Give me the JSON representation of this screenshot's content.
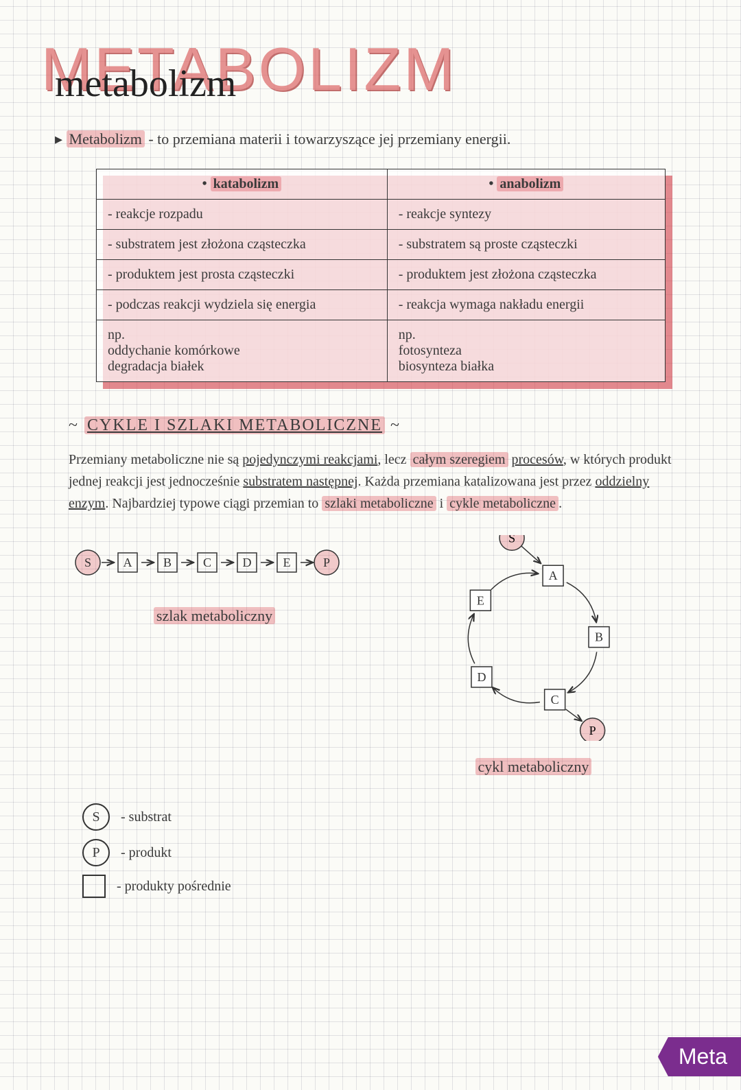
{
  "colors": {
    "highlight": "#d8555f",
    "ink": "#333333",
    "grid": "#c8c8d0",
    "tag": "#7b2d8e"
  },
  "title": {
    "block": "METABOLIZM",
    "script": "metabolizm"
  },
  "definition": {
    "term": "Metabolizm",
    "text": " - to przemiana materii i towarzyszące jej przemiany energii."
  },
  "table": {
    "headers": [
      "katabolizm",
      "anabolizm"
    ],
    "rows": [
      [
        "- reakcje rozpadu",
        "- reakcje syntezy"
      ],
      [
        "- substratem jest złożona cząsteczka",
        "- substratem są proste cząsteczki"
      ],
      [
        "- produktem jest prosta cząsteczki",
        "- produktem jest złożona cząsteczka"
      ],
      [
        "- podczas reakcji wydziela się energia",
        "- reakcja wymaga nakładu energii"
      ],
      [
        "np.\noddychanie komórkowe\ndegradacja białek",
        "np.\nfotosynteza\nbiosynteza białka"
      ]
    ]
  },
  "section": {
    "prefix": "~",
    "title": "CYKLE I SZLAKI METABOLICZNE",
    "suffix": "~"
  },
  "paragraph": {
    "p1": "Przemiany metaboliczne nie są ",
    "u1": "pojedynczymi reakcjami",
    "p2": ", lecz ",
    "h1": "całym szeregiem",
    "p3": " ",
    "u2": "procesów",
    "p4": ", w których produkt jednej reakcji jest jednocześnie ",
    "u3": "substratem następnej",
    "p5": ". Każda przemiana katalizowana jest przez ",
    "u4": "oddzielny enzym",
    "p6": ". Najbardziej typowe ciągi przemian to ",
    "h2": "szlaki metaboliczne",
    "p7": " i ",
    "h3": "cykle metaboliczne",
    "p8": "."
  },
  "pathway": {
    "type": "linear",
    "nodes": [
      "S",
      "A",
      "B",
      "C",
      "D",
      "E",
      "P"
    ],
    "start_end_circle": true,
    "label": "szlak metaboliczny"
  },
  "cycle": {
    "type": "cycle",
    "nodes": [
      "A",
      "B",
      "C",
      "D",
      "E"
    ],
    "input": "S",
    "output": "P",
    "label": "cykl metaboliczny"
  },
  "legend": {
    "s": {
      "sym": "S",
      "text": "- substrat"
    },
    "p": {
      "sym": "P",
      "text": "- produkt"
    },
    "sq": {
      "text": "- produkty pośrednie"
    }
  },
  "tag": "Meta"
}
